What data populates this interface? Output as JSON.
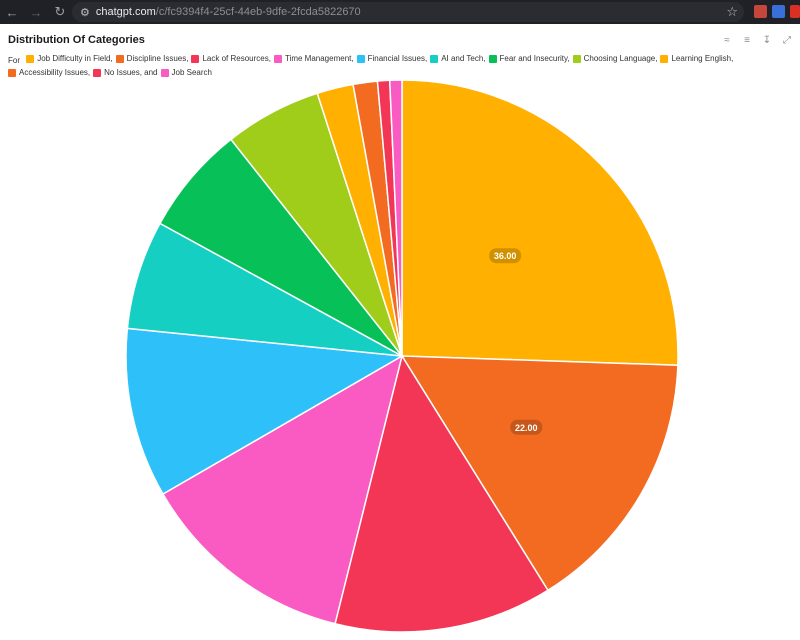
{
  "browser": {
    "url_host": "chatgpt.com",
    "url_path": "/c/fc9394f4-25cf-44eb-9dfe-2fcda5822670"
  },
  "chart_data": {
    "type": "pie",
    "title": "Distribution Of Categories",
    "legend_prefix": "For",
    "legend_placement": "top-left",
    "series": [
      {
        "name": "Job Difficulty in Field,",
        "value": 36,
        "color": "#FFB000",
        "label": "36.00"
      },
      {
        "name": "Discipline Issues,",
        "value": 22,
        "color": "#F26B21",
        "label": "22.00"
      },
      {
        "name": "Lack of Resources,",
        "value": 18,
        "color": "#F33656",
        "label": ""
      },
      {
        "name": "Time Management,",
        "value": 18,
        "color": "#F95BC2",
        "label": ""
      },
      {
        "name": "Financial Issues,",
        "value": 14,
        "color": "#2EC0F9",
        "label": ""
      },
      {
        "name": "AI and Tech,",
        "value": 9,
        "color": "#16CFC3",
        "label": ""
      },
      {
        "name": "Fear and Insecurity,",
        "value": 9,
        "color": "#07C158",
        "label": ""
      },
      {
        "name": "Choosing Language,",
        "value": 8,
        "color": "#A0CD1A",
        "label": ""
      },
      {
        "name": "Learning English,",
        "value": 3,
        "color": "#FFB000",
        "label": ""
      },
      {
        "name": "Accessibility Issues,",
        "value": 2,
        "color": "#F26B21",
        "label": ""
      },
      {
        "name": "No Issues, and",
        "value": 1,
        "color": "#F33656",
        "label": ""
      },
      {
        "name": "Job Search",
        "value": 1,
        "color": "#F95BC2",
        "label": ""
      }
    ]
  }
}
